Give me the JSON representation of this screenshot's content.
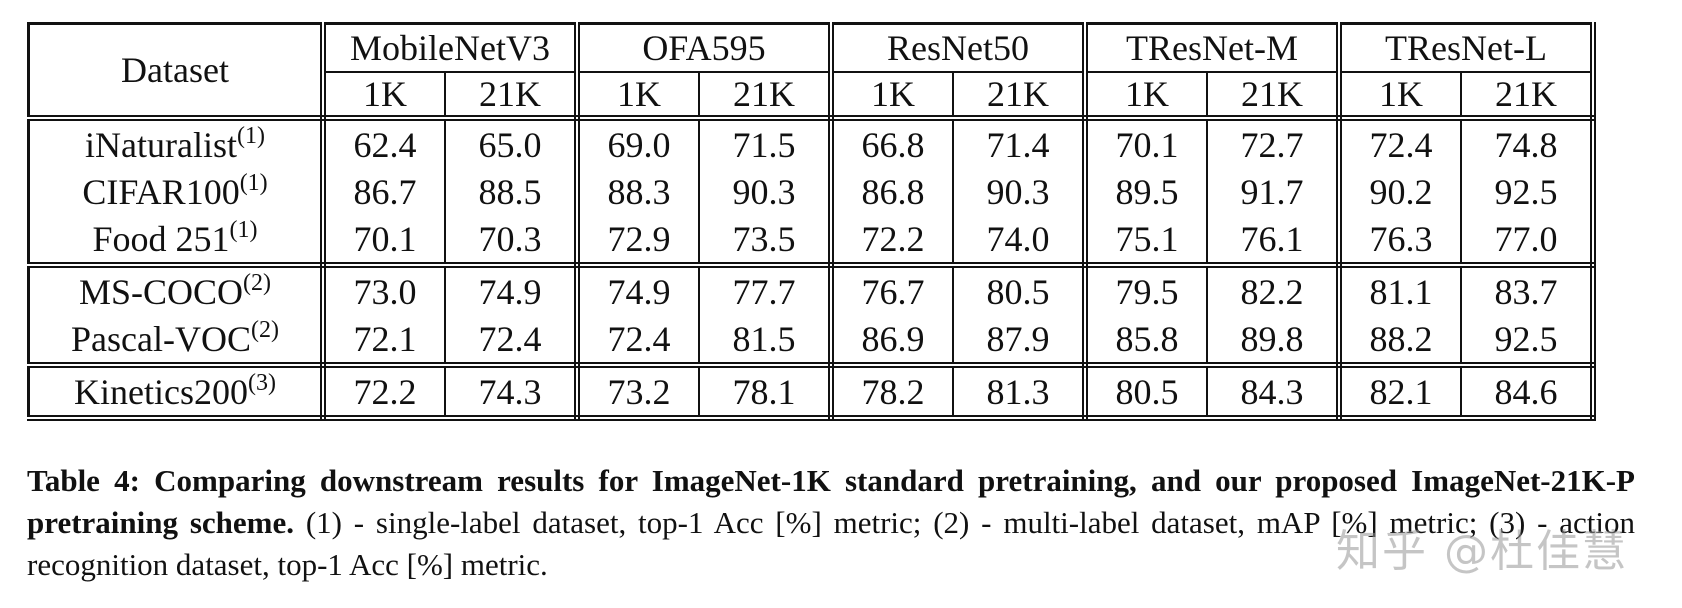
{
  "table": {
    "dataset_header": "Dataset",
    "models": [
      "MobileNetV3",
      "OFA595",
      "ResNet50",
      "TResNet-M",
      "TResNet-L"
    ],
    "sub_headers": [
      "1K",
      "21K"
    ],
    "rows": [
      {
        "dataset": "iNaturalist",
        "sup": "(1)",
        "values": [
          "62.4",
          "65.0",
          "69.0",
          "71.5",
          "66.8",
          "71.4",
          "70.1",
          "72.7",
          "72.4",
          "74.8"
        ]
      },
      {
        "dataset": "CIFAR100",
        "sup": "(1)",
        "values": [
          "86.7",
          "88.5",
          "88.3",
          "90.3",
          "86.8",
          "90.3",
          "89.5",
          "91.7",
          "90.2",
          "92.5"
        ]
      },
      {
        "dataset": "Food 251",
        "sup": "(1)",
        "values": [
          "70.1",
          "70.3",
          "72.9",
          "73.5",
          "72.2",
          "74.0",
          "75.1",
          "76.1",
          "76.3",
          "77.0"
        ]
      },
      {
        "dataset": "MS-COCO",
        "sup": "(2)",
        "values": [
          "73.0",
          "74.9",
          "74.9",
          "77.7",
          "76.7",
          "80.5",
          "79.5",
          "82.2",
          "81.1",
          "83.7"
        ]
      },
      {
        "dataset": "Pascal-VOC",
        "sup": "(2)",
        "values": [
          "72.1",
          "72.4",
          "72.4",
          "81.5",
          "86.9",
          "87.9",
          "85.8",
          "89.8",
          "88.2",
          "92.5"
        ]
      },
      {
        "dataset": "Kinetics200",
        "sup": "(3)",
        "values": [
          "72.2",
          "74.3",
          "73.2",
          "78.1",
          "78.2",
          "81.3",
          "80.5",
          "84.3",
          "82.1",
          "84.6"
        ]
      }
    ]
  },
  "caption": {
    "label": "Table 4:",
    "bold_text": "Comparing downstream results for ImageNet-1K standard pretraining, and our proposed ImageNet-21K-P pretraining scheme.",
    "normal_text": "(1) - single-label dataset, top-1 Acc [%] metric; (2) - multi-label dataset, mAP [%] metric; (3) - action recognition dataset, top-1 Acc [%] metric."
  },
  "watermark": "知乎 @杜佳慧"
}
